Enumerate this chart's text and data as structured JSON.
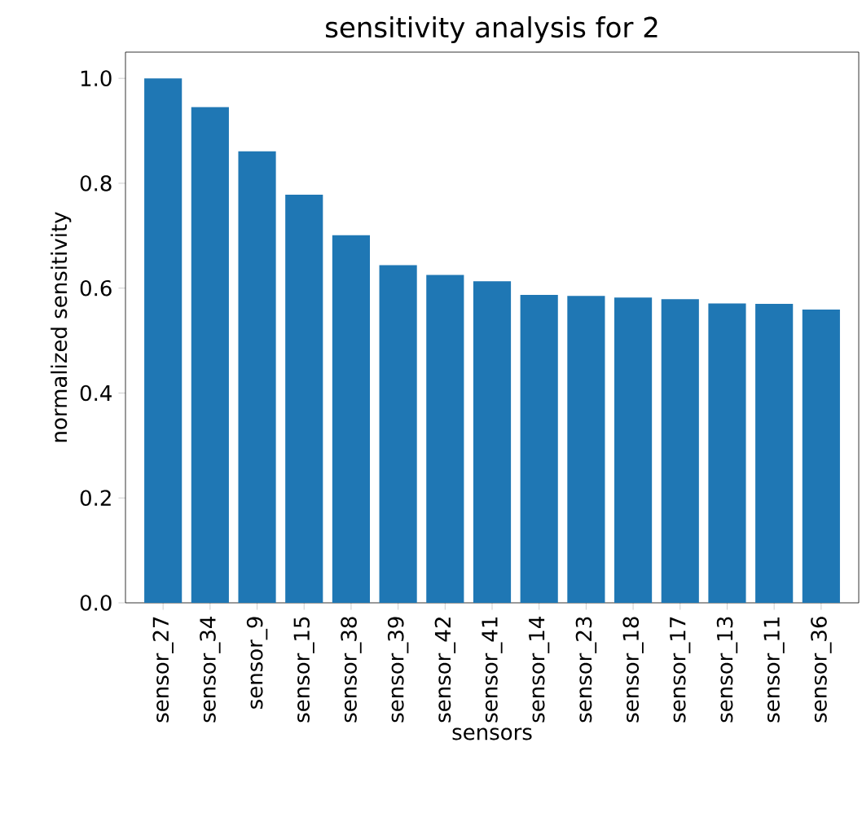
{
  "chart_data": {
    "type": "bar",
    "title": "sensitivity analysis for 2",
    "xlabel": "sensors",
    "ylabel": "normalized sensitivity",
    "categories": [
      "sensor_27",
      "sensor_34",
      "sensor_9",
      "sensor_15",
      "sensor_38",
      "sensor_39",
      "sensor_42",
      "sensor_41",
      "sensor_14",
      "sensor_23",
      "sensor_18",
      "sensor_17",
      "sensor_13",
      "sensor_11",
      "sensor_36"
    ],
    "values": [
      1.0,
      0.945,
      0.861,
      0.778,
      0.701,
      0.644,
      0.625,
      0.613,
      0.587,
      0.585,
      0.582,
      0.579,
      0.571,
      0.57,
      0.559
    ],
    "color": "#1f77b4",
    "ylim": [
      0,
      1.05
    ],
    "yticks": [
      {
        "value": 0,
        "label": "0.0"
      },
      0.2,
      0.4,
      0.6,
      0.8,
      {
        "value": 1,
        "label": "1.0"
      }
    ],
    "grid": false
  }
}
